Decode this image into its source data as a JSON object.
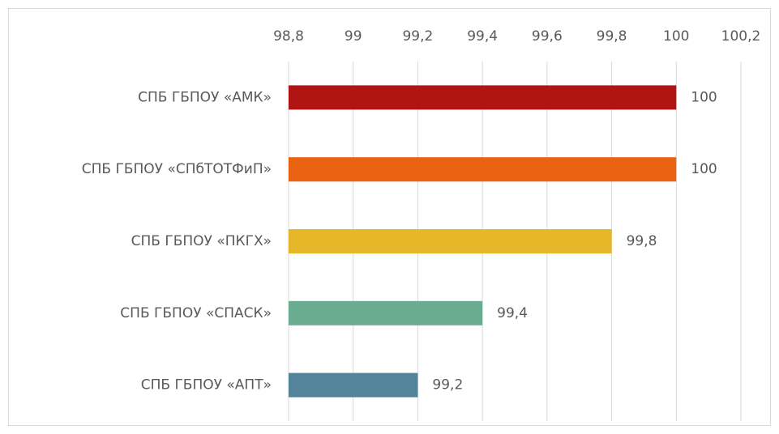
{
  "chart_data": {
    "type": "bar",
    "orientation": "horizontal",
    "categories": [
      "СПБ ГБПОУ «АМК»",
      "СПБ ГБПОУ «СПбТОТФиП»",
      "СПБ ГБПОУ «ПКГХ»",
      "СПБ ГБПОУ «СПАСК»",
      "СПБ ГБПОУ «АПТ»"
    ],
    "values": [
      100,
      100,
      99.8,
      99.4,
      99.2
    ],
    "value_labels": [
      "100",
      "100",
      "99,8",
      "99,4",
      "99,2"
    ],
    "colors": [
      "#b01513",
      "#ea6312",
      "#e6b729",
      "#6aac90",
      "#54849a"
    ],
    "xlim": [
      98.8,
      100.2
    ],
    "xticks": [
      {
        "value": 98.8,
        "label": "98,8"
      },
      99,
      {
        "value": 99.2,
        "label": "99,2"
      },
      {
        "value": 99.4,
        "label": "99,4"
      },
      {
        "value": 99.6,
        "label": "99,6"
      },
      {
        "value": 99.8,
        "label": "99,8"
      },
      100,
      {
        "value": 100.2,
        "label": "100,2"
      }
    ],
    "grid": true
  }
}
